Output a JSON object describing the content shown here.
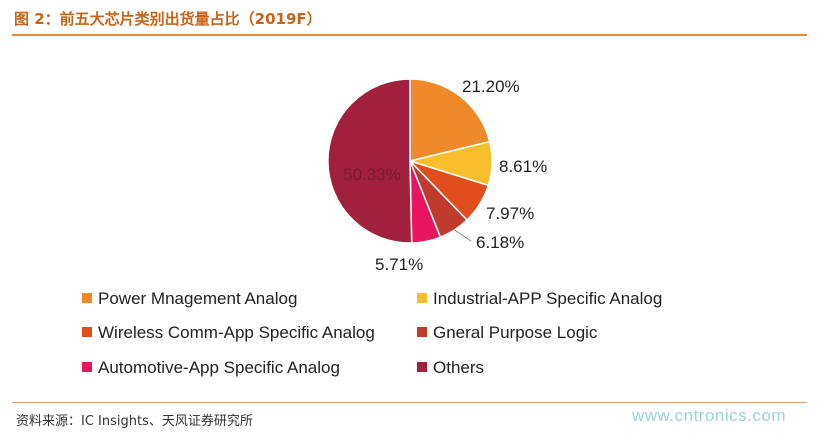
{
  "title": "图 2：前五大芯片类别出货量占比（2019F）",
  "source": "资料来源：IC Insights、天风证券研究所",
  "watermark": "www.cntronics.com",
  "chart_data": {
    "type": "pie",
    "title": "图 2：前五大芯片类别出货量占比（2019F）",
    "legend_position": "bottom",
    "slices": [
      {
        "name": "Power Mnagement Analog",
        "value": 21.2,
        "label": "21.20%",
        "color": "#f0892a"
      },
      {
        "name": "Industrial-APP Specific Analog",
        "value": 8.61,
        "label": "8.61%",
        "color": "#f9be2c"
      },
      {
        "name": "Wireless Comm-App Specific Analog",
        "value": 7.97,
        "label": "7.97%",
        "color": "#e04e1e"
      },
      {
        "name": "Gneral Purpose Logic",
        "value": 6.18,
        "label": "6.18%",
        "color": "#bf3b2e"
      },
      {
        "name": "Automotive-App Specific Analog",
        "value": 5.71,
        "label": "5.71%",
        "color": "#e9155f"
      },
      {
        "name": "Others",
        "value": 50.33,
        "label": "50.33%",
        "color": "#a0203e"
      }
    ]
  }
}
